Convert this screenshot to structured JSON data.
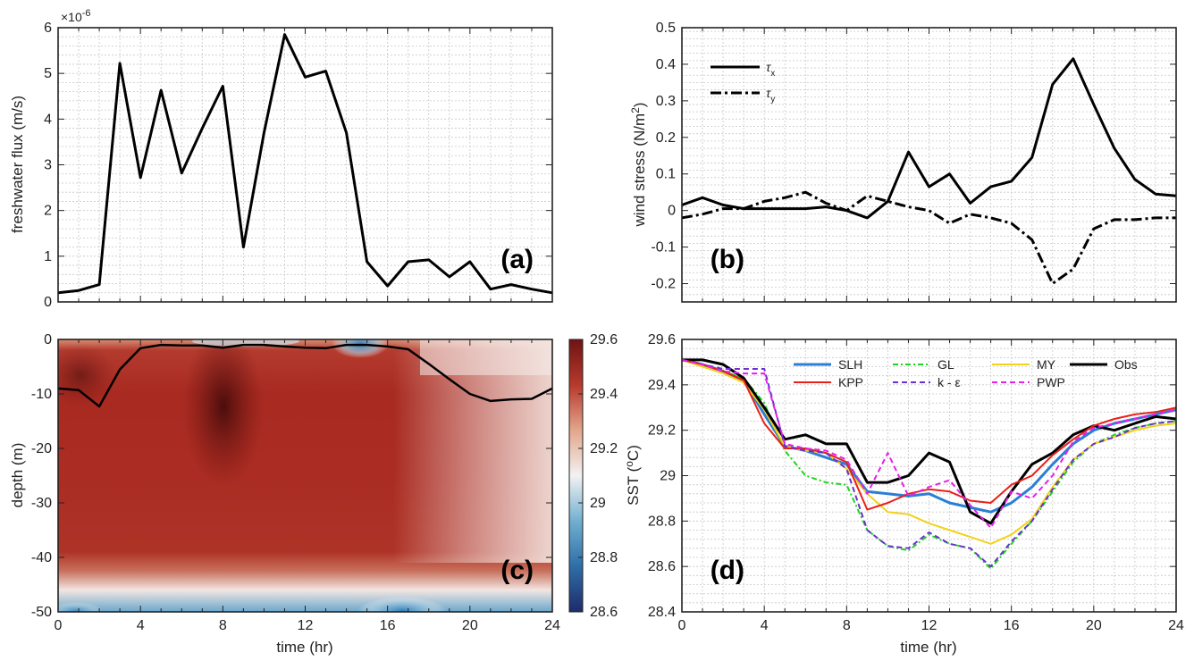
{
  "chart_data": [
    {
      "panel": "a",
      "type": "line",
      "tag": "(a)",
      "xlabel": "",
      "ylabel": "freshwater flux (m/s)",
      "exponent": "×10",
      "exponent_power": "-6",
      "xlim": [
        0,
        24
      ],
      "ylim": [
        0,
        6
      ],
      "xticks": [
        0,
        4,
        8,
        12,
        16,
        20,
        24
      ],
      "xtick_labels": [],
      "yticks": [
        0,
        1,
        2,
        3,
        4,
        5,
        6
      ],
      "ytick_labels": [
        "0",
        "1",
        "2",
        "3",
        "4",
        "5",
        "6"
      ],
      "grid": true,
      "series": [
        {
          "color": "#000000",
          "dash": "",
          "x": [
            0,
            1,
            2,
            3,
            4,
            5,
            6,
            7,
            8,
            9,
            10,
            11,
            12,
            13,
            14,
            15,
            16,
            17,
            18,
            19,
            20,
            21,
            22,
            23,
            24
          ],
          "y": [
            0.2,
            0.25,
            0.38,
            5.22,
            2.72,
            4.63,
            2.82,
            3.8,
            4.72,
            1.2,
            3.7,
            5.85,
            4.92,
            5.05,
            3.7,
            0.88,
            0.35,
            0.88,
            0.92,
            0.55,
            0.88,
            0.28,
            0.38,
            0.28,
            0.2
          ]
        }
      ]
    },
    {
      "panel": "b",
      "type": "line",
      "tag": "(b)",
      "xlabel": "",
      "ylabel": "wind stress (N/m",
      "ylabel_sup": "2",
      "ylabel_end": ")",
      "xlim": [
        0,
        24
      ],
      "ylim": [
        -0.25,
        0.5
      ],
      "xticks": [
        0,
        4,
        8,
        12,
        16,
        20,
        24
      ],
      "xtick_labels": [],
      "yticks": [
        -0.2,
        -0.1,
        0,
        0.1,
        0.2,
        0.3,
        0.4,
        0.5
      ],
      "ytick_labels": [
        "-0.2",
        "-0.1",
        "0",
        "0.1",
        "0.2",
        "0.3",
        "0.4",
        "0.5"
      ],
      "grid": true,
      "legend": [
        {
          "label": "τ",
          "sub": "x",
          "dash": ""
        },
        {
          "label": "τ",
          "sub": "y",
          "dash": "12,4,3,4"
        }
      ],
      "series": [
        {
          "name": "τx",
          "color": "#000000",
          "dash": "",
          "x": [
            0,
            1,
            2,
            3,
            4,
            5,
            6,
            7,
            8,
            9,
            10,
            11,
            12,
            13,
            14,
            15,
            16,
            17,
            18,
            19,
            20,
            21,
            22,
            23,
            24
          ],
          "y": [
            0.015,
            0.035,
            0.015,
            0.005,
            0.005,
            0.005,
            0.005,
            0.01,
            0.0,
            -0.02,
            0.025,
            0.16,
            0.065,
            0.1,
            0.02,
            0.065,
            0.08,
            0.145,
            0.345,
            0.415,
            0.29,
            0.17,
            0.085,
            0.045,
            0.04
          ]
        },
        {
          "name": "τy",
          "color": "#000000",
          "dash": "12,4,3,4",
          "x": [
            0,
            1,
            2,
            3,
            4,
            5,
            6,
            7,
            8,
            9,
            10,
            11,
            12,
            13,
            14,
            15,
            16,
            17,
            18,
            19,
            20,
            21,
            22,
            23,
            24
          ],
          "y": [
            -0.02,
            -0.01,
            0.005,
            0.005,
            0.025,
            0.035,
            0.05,
            0.02,
            0.0,
            0.04,
            0.025,
            0.01,
            0.0,
            -0.035,
            -0.01,
            -0.02,
            -0.035,
            -0.08,
            -0.2,
            -0.16,
            -0.05,
            -0.025,
            -0.025,
            -0.02,
            -0.02
          ]
        }
      ]
    },
    {
      "panel": "c",
      "type": "heatmap",
      "tag": "(c)",
      "xlabel": "time (hr)",
      "ylabel": "depth (m)",
      "xlim": [
        0,
        24
      ],
      "ylim": [
        -50,
        0
      ],
      "xticks": [
        0,
        4,
        8,
        12,
        16,
        20,
        24
      ],
      "xtick_labels": [
        "0",
        "4",
        "8",
        "12",
        "16",
        "20",
        "24"
      ],
      "yticks": [
        -50,
        -40,
        -30,
        -20,
        -10,
        0
      ],
      "ytick_labels": [
        "-50",
        "-40",
        "-30",
        "-20",
        "-10",
        "0"
      ],
      "colorbar": {
        "min": 28.6,
        "max": 29.6,
        "ticks": [
          28.6,
          28.8,
          29,
          29.2,
          29.4,
          29.6
        ],
        "tick_labels": [
          "28.6",
          "28.8",
          "29",
          "29.2",
          "29.4",
          "29.6"
        ],
        "colors": [
          "#1f2b6b",
          "#2f6fa8",
          "#6faecf",
          "#f2f2f2",
          "#e2a48a",
          "#b83a2e",
          "#6e1412"
        ]
      },
      "mixed_layer_depth": {
        "x": [
          0,
          1,
          2,
          3,
          4,
          5,
          6,
          7,
          8,
          9,
          10,
          11,
          12,
          13,
          14,
          15,
          16,
          17,
          18,
          19,
          20,
          21,
          22,
          23,
          24
        ],
        "y": [
          -9,
          -9.3,
          -12.3,
          -5.5,
          -1.6,
          -1.0,
          -1.1,
          -1.1,
          -1.5,
          -1.0,
          -1.0,
          -1.3,
          -1.5,
          -1.6,
          -1.0,
          -1.0,
          -1.3,
          -1.8,
          -4.5,
          -7.3,
          -10.0,
          -11.3,
          -11.0,
          -10.9,
          -9.0
        ]
      }
    },
    {
      "panel": "d",
      "type": "line",
      "tag": "(d)",
      "xlabel": "time (hr)",
      "ylabel": "SST (",
      "ylabel_sup": "o",
      "ylabel_end": "C)",
      "xlim": [
        0,
        24
      ],
      "ylim": [
        28.4,
        29.6
      ],
      "xticks": [
        0,
        4,
        8,
        12,
        16,
        20,
        24
      ],
      "xtick_labels": [
        "0",
        "4",
        "8",
        "12",
        "16",
        "20",
        "24"
      ],
      "yticks": [
        28.4,
        28.6,
        28.8,
        29,
        29.2,
        29.4,
        29.6
      ],
      "ytick_labels": [
        "28.4",
        "28.6",
        "28.8",
        "29",
        "29.2",
        "29.4",
        "29.6"
      ],
      "grid": true,
      "legend_columns": 4,
      "series": [
        {
          "name": "SLH",
          "color": "#2a7fd4",
          "dash": "",
          "width": 3,
          "x": [
            0,
            1,
            2,
            3,
            4,
            5,
            6,
            7,
            8,
            9,
            10,
            11,
            12,
            13,
            14,
            15,
            16,
            17,
            18,
            19,
            20,
            21,
            22,
            23,
            24
          ],
          "y": [
            29.51,
            29.49,
            29.46,
            29.42,
            29.27,
            29.13,
            29.11,
            29.08,
            29.05,
            28.93,
            28.92,
            28.91,
            28.92,
            28.88,
            28.86,
            28.84,
            28.88,
            28.95,
            29.05,
            29.14,
            29.2,
            29.23,
            29.25,
            29.27,
            29.29
          ]
        },
        {
          "name": "GL",
          "color": "#1ed41e",
          "dash": "6,3,2,3",
          "width": 2,
          "x": [
            0,
            1,
            2,
            3,
            4,
            5,
            6,
            7,
            8,
            9,
            10,
            11,
            12,
            13,
            14,
            15,
            16,
            17,
            18,
            19,
            20,
            21,
            22,
            23,
            24
          ],
          "y": [
            29.51,
            29.49,
            29.46,
            29.43,
            29.32,
            29.11,
            29.0,
            28.97,
            28.96,
            28.76,
            28.69,
            28.67,
            28.74,
            28.7,
            28.68,
            28.59,
            28.7,
            28.8,
            28.93,
            29.06,
            29.14,
            29.18,
            29.21,
            29.23,
            29.24
          ]
        },
        {
          "name": "MY",
          "color": "#f2d21a",
          "dash": "",
          "width": 2,
          "x": [
            0,
            1,
            2,
            3,
            4,
            5,
            6,
            7,
            8,
            9,
            10,
            11,
            12,
            13,
            14,
            15,
            16,
            17,
            18,
            19,
            20,
            21,
            22,
            23,
            24
          ],
          "y": [
            29.51,
            29.48,
            29.45,
            29.41,
            29.29,
            29.13,
            29.11,
            29.1,
            29.03,
            28.92,
            28.84,
            28.83,
            28.79,
            28.76,
            28.73,
            28.7,
            28.74,
            28.81,
            28.95,
            29.07,
            29.14,
            29.17,
            29.2,
            29.22,
            29.23
          ]
        },
        {
          "name": "Obs",
          "color": "#000000",
          "dash": "",
          "width": 3,
          "x": [
            0,
            1,
            2,
            3,
            4,
            5,
            6,
            7,
            8,
            9,
            10,
            11,
            12,
            13,
            14,
            15,
            16,
            17,
            18,
            19,
            20,
            21,
            22,
            23,
            24
          ],
          "y": [
            29.51,
            29.51,
            29.49,
            29.43,
            29.3,
            29.16,
            29.18,
            29.14,
            29.14,
            28.97,
            28.97,
            29.0,
            29.1,
            29.06,
            28.84,
            28.79,
            28.93,
            29.05,
            29.1,
            29.18,
            29.22,
            29.2,
            29.23,
            29.26,
            29.25
          ]
        },
        {
          "name": "KPP",
          "color": "#e8201a",
          "dash": "",
          "width": 2,
          "x": [
            0,
            1,
            2,
            3,
            4,
            5,
            6,
            7,
            8,
            9,
            10,
            11,
            12,
            13,
            14,
            15,
            16,
            17,
            18,
            19,
            20,
            21,
            22,
            23,
            24
          ],
          "y": [
            29.51,
            29.49,
            29.46,
            29.42,
            29.23,
            29.12,
            29.12,
            29.1,
            29.06,
            28.85,
            28.88,
            28.92,
            28.94,
            28.93,
            28.89,
            28.88,
            28.96,
            29.0,
            29.09,
            29.16,
            29.22,
            29.25,
            29.27,
            29.28,
            29.3
          ]
        },
        {
          "name": "k - ε",
          "color": "#6b2fd1",
          "dash": "6,4",
          "width": 2,
          "x": [
            0,
            1,
            2,
            3,
            4,
            5,
            6,
            7,
            8,
            9,
            10,
            11,
            12,
            13,
            14,
            15,
            16,
            17,
            18,
            19,
            20,
            21,
            22,
            23,
            24
          ],
          "y": [
            29.51,
            29.49,
            29.47,
            29.47,
            29.47,
            29.13,
            29.11,
            29.1,
            29.03,
            28.76,
            28.69,
            28.68,
            28.75,
            28.7,
            28.68,
            28.6,
            28.71,
            28.8,
            28.94,
            29.07,
            29.14,
            29.17,
            29.21,
            29.23,
            29.24
          ]
        },
        {
          "name": "PWP",
          "color": "#e81ee8",
          "dash": "6,4",
          "width": 2,
          "x": [
            0,
            1,
            2,
            3,
            4,
            5,
            6,
            7,
            8,
            9,
            10,
            11,
            12,
            13,
            14,
            15,
            16,
            17,
            18,
            19,
            20,
            21,
            22,
            23,
            24
          ],
          "y": [
            29.51,
            29.49,
            29.46,
            29.45,
            29.45,
            29.14,
            29.12,
            29.11,
            29.07,
            28.92,
            29.1,
            28.91,
            28.95,
            28.98,
            28.87,
            28.77,
            28.93,
            28.9,
            29.0,
            29.15,
            29.21,
            29.23,
            29.25,
            29.27,
            29.29
          ]
        }
      ]
    }
  ]
}
